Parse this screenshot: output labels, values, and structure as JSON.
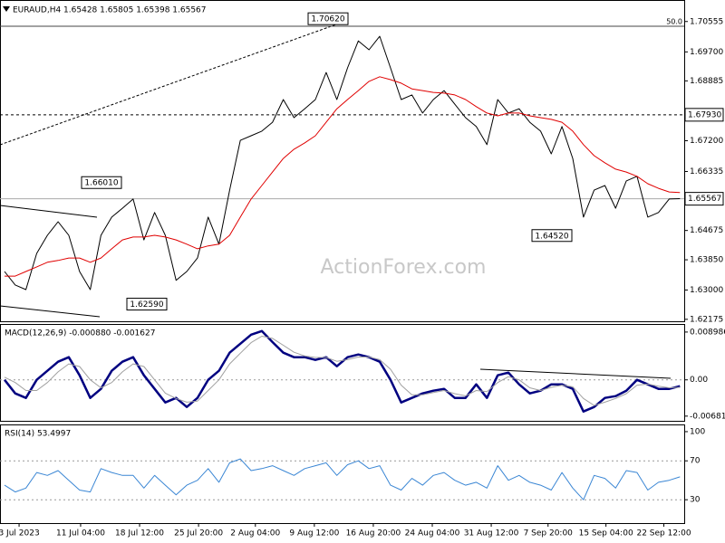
{
  "chart_data": [
    {
      "type": "line",
      "title": "EURAUD,H4 1.65428 1.65805 1.65398 1.65567",
      "watermark": "ActionForex.com",
      "xlim": [
        -0.42,
        63.4
      ],
      "ylim": [
        1.6212,
        1.7116
      ],
      "yticks": [
        1.70555,
        {
          "value": 1.697,
          "label": "1.69700"
        },
        1.68885,
        {
          "value": 1.672,
          "label": "1.67200"
        },
        1.66335,
        1.64675,
        {
          "value": 1.6385,
          "label": "1.63850"
        },
        {
          "value": 1.63,
          "label": "1.63000"
        },
        1.62175
      ],
      "series": [
        {
          "color": "#000000",
          "values": [
            1.6352,
            1.6314,
            1.6301,
            1.6403,
            1.6454,
            1.6492,
            1.6454,
            1.6352,
            1.6301,
            1.6454,
            1.6505,
            1.653,
            1.6556,
            1.6441,
            1.6518,
            1.6454,
            1.6327,
            1.6352,
            1.639,
            1.6505,
            1.6429,
            1.6581,
            1.6721,
            1.6734,
            1.6747,
            1.6772,
            1.6836,
            1.6785,
            1.681,
            1.6836,
            1.6912,
            1.6836,
            1.6925,
            1.7001,
            1.6976,
            1.7014,
            1.6925,
            1.6836,
            1.6849,
            1.6798,
            1.6836,
            1.6861,
            1.6823,
            1.6785,
            1.676,
            1.6709,
            1.6836,
            1.6798,
            1.681,
            1.6772,
            1.6747,
            1.6683,
            1.676,
            1.667,
            1.6505,
            1.6581,
            1.6594,
            1.653,
            1.6607,
            1.662,
            1.6505,
            1.6518,
            1.6556,
            1.6557
          ]
        },
        {
          "color": "#e00000",
          "values": [
            1.6339,
            1.6339,
            1.6352,
            1.6365,
            1.6378,
            1.6383,
            1.639,
            1.639,
            1.6378,
            1.639,
            1.6416,
            1.6441,
            1.6449,
            1.6449,
            1.6454,
            1.6449,
            1.6441,
            1.6429,
            1.6416,
            1.6424,
            1.6429,
            1.6454,
            1.6505,
            1.6556,
            1.6594,
            1.6632,
            1.667,
            1.6696,
            1.6714,
            1.6734,
            1.6772,
            1.681,
            1.6836,
            1.6861,
            1.6887,
            1.69,
            1.6892,
            1.6882,
            1.6866,
            1.6861,
            1.6856,
            1.6854,
            1.6849,
            1.6836,
            1.6816,
            1.6798,
            1.679,
            1.6798,
            1.6798,
            1.679,
            1.6785,
            1.678,
            1.6772,
            1.6747,
            1.6709,
            1.6678,
            1.6658,
            1.664,
            1.6632,
            1.662,
            1.6599,
            1.6586,
            1.6576,
            1.6574
          ]
        }
      ],
      "annotations": [
        {
          "value": 1.7062,
          "label": "1.70620"
        },
        {
          "value": 1.6601,
          "label": "1.66010"
        },
        {
          "value": 1.6259,
          "label": "1.62590"
        },
        {
          "value": 1.6452,
          "label": "1.64520"
        }
      ],
      "levels": [
        {
          "value": 1.7042,
          "label": "50.0"
        },
        {
          "value": 1.6793,
          "label": "1.67930"
        }
      ],
      "last_price": 1.65567
    },
    {
      "type": "line",
      "title": "MACD(12,26,9) -0.000880 -0.001627",
      "ylim": [
        -0.0077,
        0.0105
      ],
      "yticks": [
        0.008986,
        {
          "value": 0,
          "label": "0.00"
        },
        -0.006816
      ],
      "levels": [
        0
      ],
      "series": [
        {
          "color": "#000080",
          "values": [
            0,
            -0.00255,
            -0.0034,
            0,
            0.0017,
            0.0034,
            0.00425,
            0.00085,
            -0.0034,
            -0.0017,
            0.0017,
            0.0034,
            0.00425,
            0.00085,
            -0.0017,
            -0.00425,
            -0.0034,
            -0.0051,
            -0.0034,
            0,
            0.0017,
            0.0051,
            0.0068,
            0.0085,
            0.00918,
            0.0071,
            0.0051,
            0.00425,
            0.00425,
            0.00374,
            0.00425,
            0.00255,
            0.00425,
            0.00476,
            0.00425,
            0.0034,
            0,
            -0.00425,
            -0.0034,
            -0.00255,
            -0.00204,
            -0.0017,
            -0.0034,
            -0.0034,
            -0.00085,
            -0.0034,
            0.00085,
            0.00136,
            -0.00085,
            -0.00255,
            -0.00204,
            -0.00085,
            -0.00085,
            -0.0017,
            -0.00595,
            -0.0051,
            -0.0034,
            -0.00306,
            -0.00204,
            0,
            -0.00085,
            -0.0017,
            -0.0017,
            -0.00119
          ]
        },
        {
          "color": "#a0a0a0",
          "values": [
            0.0005,
            -0.0005,
            -0.002,
            -0.002,
            -0.0005,
            0.0015,
            0.003,
            0.0025,
            0,
            -0.0015,
            -0.0005,
            0.0015,
            0.003,
            0.0025,
            0,
            -0.0025,
            -0.0035,
            -0.0042,
            -0.004,
            -0.002,
            0,
            0.003,
            0.005,
            0.007,
            0.0082,
            0.0078,
            0.0065,
            0.0052,
            0.0045,
            0.0042,
            0.0042,
            0.0035,
            0.0038,
            0.0043,
            0.0043,
            0.0038,
            0.002,
            -0.001,
            -0.0028,
            -0.0028,
            -0.0024,
            -0.002,
            -0.0026,
            -0.003,
            -0.002,
            -0.0022,
            -0.0005,
            0.0006,
            0,
            -0.0015,
            -0.002,
            -0.0014,
            -0.001,
            -0.0013,
            -0.0035,
            -0.0048,
            -0.0042,
            -0.0035,
            -0.0026,
            -0.001,
            -0.0008,
            -0.0012,
            -0.0015,
            -0.0014
          ]
        }
      ]
    },
    {
      "type": "line",
      "title": "RSI(14) 53.4997",
      "ylim": [
        6,
        107.4
      ],
      "yticks": [
        100,
        70,
        30
      ],
      "levels": [
        70,
        30
      ],
      "xticks": [
        {
          "value": 1.36,
          "label": "3 Jul 2023"
        },
        {
          "value": 7.1,
          "label": "11 Jul 04:00"
        },
        {
          "value": 12.6,
          "label": "18 Jul 12:00"
        },
        {
          "value": 18.1,
          "label": "25 Jul 20:00"
        },
        {
          "value": 23.4,
          "label": "2 Aug 04:00"
        },
        {
          "value": 28.9,
          "label": "9 Aug 12:00"
        },
        {
          "value": 34.4,
          "label": "16 Aug 20:00"
        },
        {
          "value": 39.9,
          "label": "24 Aug 04:00"
        },
        {
          "value": 45.4,
          "label": "31 Aug 12:00"
        },
        {
          "value": 50.7,
          "label": "7 Sep 20:00"
        },
        {
          "value": 56.1,
          "label": "15 Sep 04:00"
        },
        {
          "value": 61.5,
          "label": "22 Sep 12:00"
        }
      ],
      "series": [
        {
          "color": "#3a86d4",
          "values": [
            45,
            38,
            42,
            58,
            55,
            60,
            50,
            40,
            38,
            62,
            58,
            55,
            55,
            42,
            55,
            45,
            35,
            45,
            50,
            62,
            48,
            68,
            72,
            60,
            62,
            65,
            60,
            55,
            62,
            65,
            68,
            55,
            66,
            70,
            62,
            65,
            45,
            40,
            52,
            45,
            55,
            58,
            50,
            45,
            48,
            42,
            65,
            50,
            55,
            48,
            45,
            40,
            58,
            42,
            30,
            55,
            52,
            42,
            60,
            58,
            40,
            48,
            50,
            53.5
          ]
        }
      ]
    }
  ]
}
